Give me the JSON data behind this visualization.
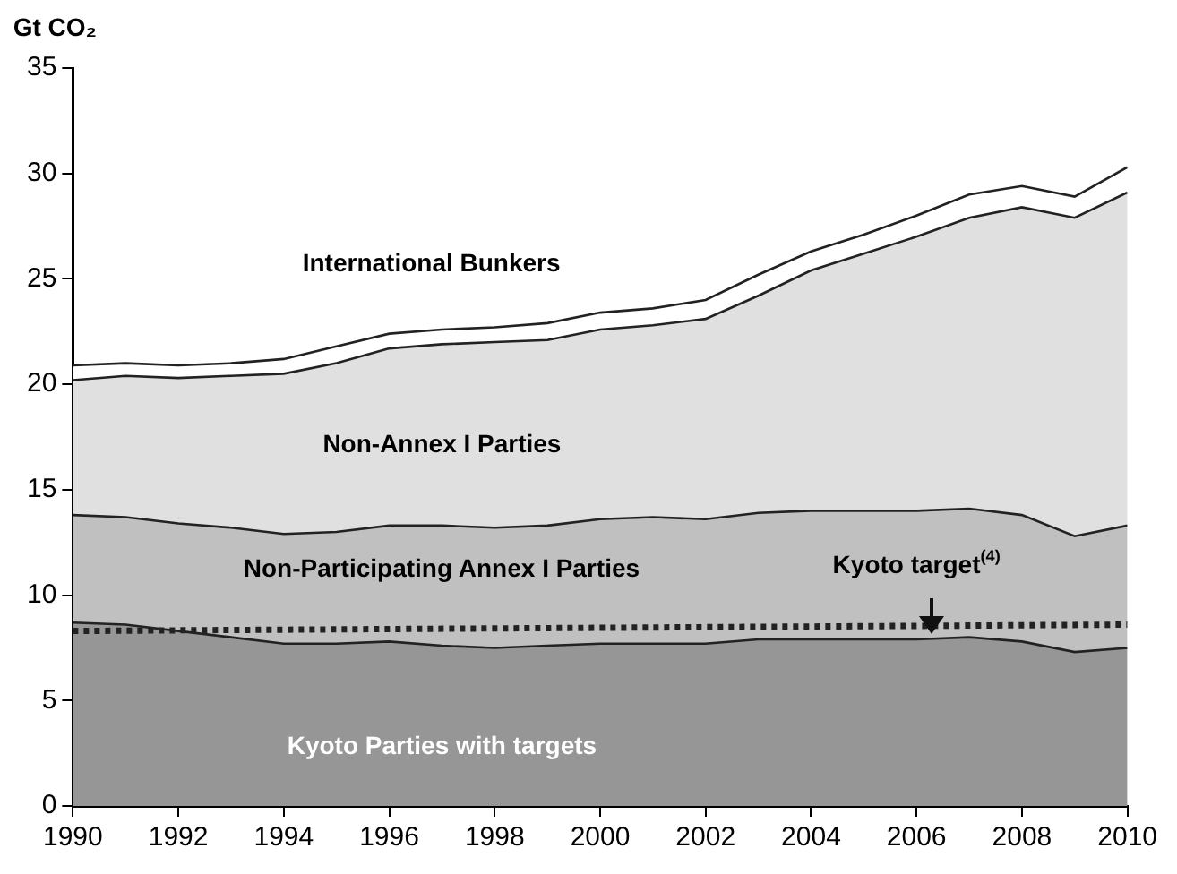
{
  "chart_data": {
    "type": "area",
    "stacked": true,
    "ylabel": "Gt CO₂",
    "x": [
      1990,
      1991,
      1992,
      1993,
      1994,
      1995,
      1996,
      1997,
      1998,
      1999,
      2000,
      2001,
      2002,
      2003,
      2004,
      2005,
      2006,
      2007,
      2008,
      2009,
      2010
    ],
    "series": [
      {
        "name": "Kyoto Parties with targets",
        "color": "#969696",
        "values": [
          8.7,
          8.6,
          8.3,
          8.0,
          7.7,
          7.7,
          7.8,
          7.6,
          7.5,
          7.6,
          7.7,
          7.7,
          7.7,
          7.9,
          7.9,
          7.9,
          7.9,
          8.0,
          7.8,
          7.3,
          7.5
        ]
      },
      {
        "name": "Non-Participating Annex I Parties",
        "color": "#c0c0c0",
        "values": [
          5.1,
          5.1,
          5.1,
          5.2,
          5.2,
          5.3,
          5.5,
          5.7,
          5.7,
          5.7,
          5.9,
          6.0,
          5.9,
          6.0,
          6.1,
          6.1,
          6.1,
          6.1,
          6.0,
          5.5,
          5.8
        ]
      },
      {
        "name": "Non-Annex I Parties",
        "color": "#e0e0e0",
        "values": [
          6.4,
          6.7,
          6.9,
          7.2,
          7.6,
          8.0,
          8.4,
          8.6,
          8.8,
          8.8,
          9.0,
          9.1,
          9.5,
          10.3,
          11.4,
          12.2,
          13.0,
          13.8,
          14.6,
          15.1,
          15.8
        ]
      },
      {
        "name": "International Bunkers",
        "color": "#ffffff",
        "values": [
          0.7,
          0.6,
          0.6,
          0.6,
          0.7,
          0.8,
          0.7,
          0.7,
          0.7,
          0.8,
          0.8,
          0.8,
          0.9,
          1.0,
          0.9,
          0.9,
          1.0,
          1.1,
          1.0,
          1.0,
          1.2
        ]
      },
      {
        "type": "line",
        "line_style": "dotted",
        "color": "#222222",
        "x": [
          1990,
          2010
        ],
        "values": [
          8.3,
          8.6
        ]
      }
    ],
    "xlim": [
      1990,
      2010
    ],
    "xticks": [
      1990,
      1992,
      1994,
      1996,
      1998,
      2000,
      2002,
      2004,
      2006,
      2008,
      2010
    ],
    "ylim": [
      0,
      35
    ],
    "yticks": [
      0,
      5,
      10,
      15,
      20,
      25,
      30,
      35
    ],
    "annotations": [
      {
        "text": "Kyoto target$^{(4)}$",
        "x": 2006,
        "y": 8.5
      }
    ],
    "grid": false,
    "legend": false,
    "marker": "none"
  }
}
